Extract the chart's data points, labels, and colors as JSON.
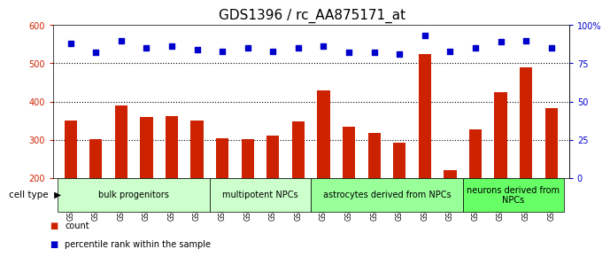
{
  "title": "GDS1396 / rc_AA875171_at",
  "samples": [
    "GSM47541",
    "GSM47542",
    "GSM47543",
    "GSM47544",
    "GSM47545",
    "GSM47546",
    "GSM47547",
    "GSM47548",
    "GSM47549",
    "GSM47550",
    "GSM47551",
    "GSM47552",
    "GSM47553",
    "GSM47554",
    "GSM47555",
    "GSM47556",
    "GSM47557",
    "GSM47558",
    "GSM47559",
    "GSM47560"
  ],
  "counts": [
    350,
    302,
    390,
    360,
    363,
    350,
    305,
    302,
    310,
    348,
    430,
    335,
    318,
    292,
    525,
    220,
    328,
    425,
    490,
    382
  ],
  "percentiles": [
    88,
    82,
    90,
    85,
    86,
    84,
    83,
    85,
    83,
    85,
    86,
    82,
    82,
    81,
    93,
    83,
    85,
    89,
    90,
    85
  ],
  "cell_type_groups": [
    {
      "label": "bulk progenitors",
      "start": 0,
      "end": 6,
      "color": "#ccffcc"
    },
    {
      "label": "multipotent NPCs",
      "start": 6,
      "end": 10,
      "color": "#ccffcc"
    },
    {
      "label": "astrocytes derived from NPCs",
      "start": 10,
      "end": 16,
      "color": "#99ff99"
    },
    {
      "label": "neurons derived from\nNPCs",
      "start": 16,
      "end": 20,
      "color": "#66ff66"
    }
  ],
  "bar_color": "#cc2200",
  "dot_color": "#0000cc",
  "ylim_left": [
    200,
    600
  ],
  "ylim_right": [
    0,
    100
  ],
  "yticks_left": [
    200,
    300,
    400,
    500,
    600
  ],
  "yticks_right": [
    0,
    25,
    50,
    75,
    100
  ],
  "grid_lines": [
    300,
    400,
    500
  ],
  "title_fontsize": 11,
  "tick_fontsize": 7,
  "sample_fontsize": 5.5,
  "group_fontsize": 7,
  "legend_fontsize": 7
}
